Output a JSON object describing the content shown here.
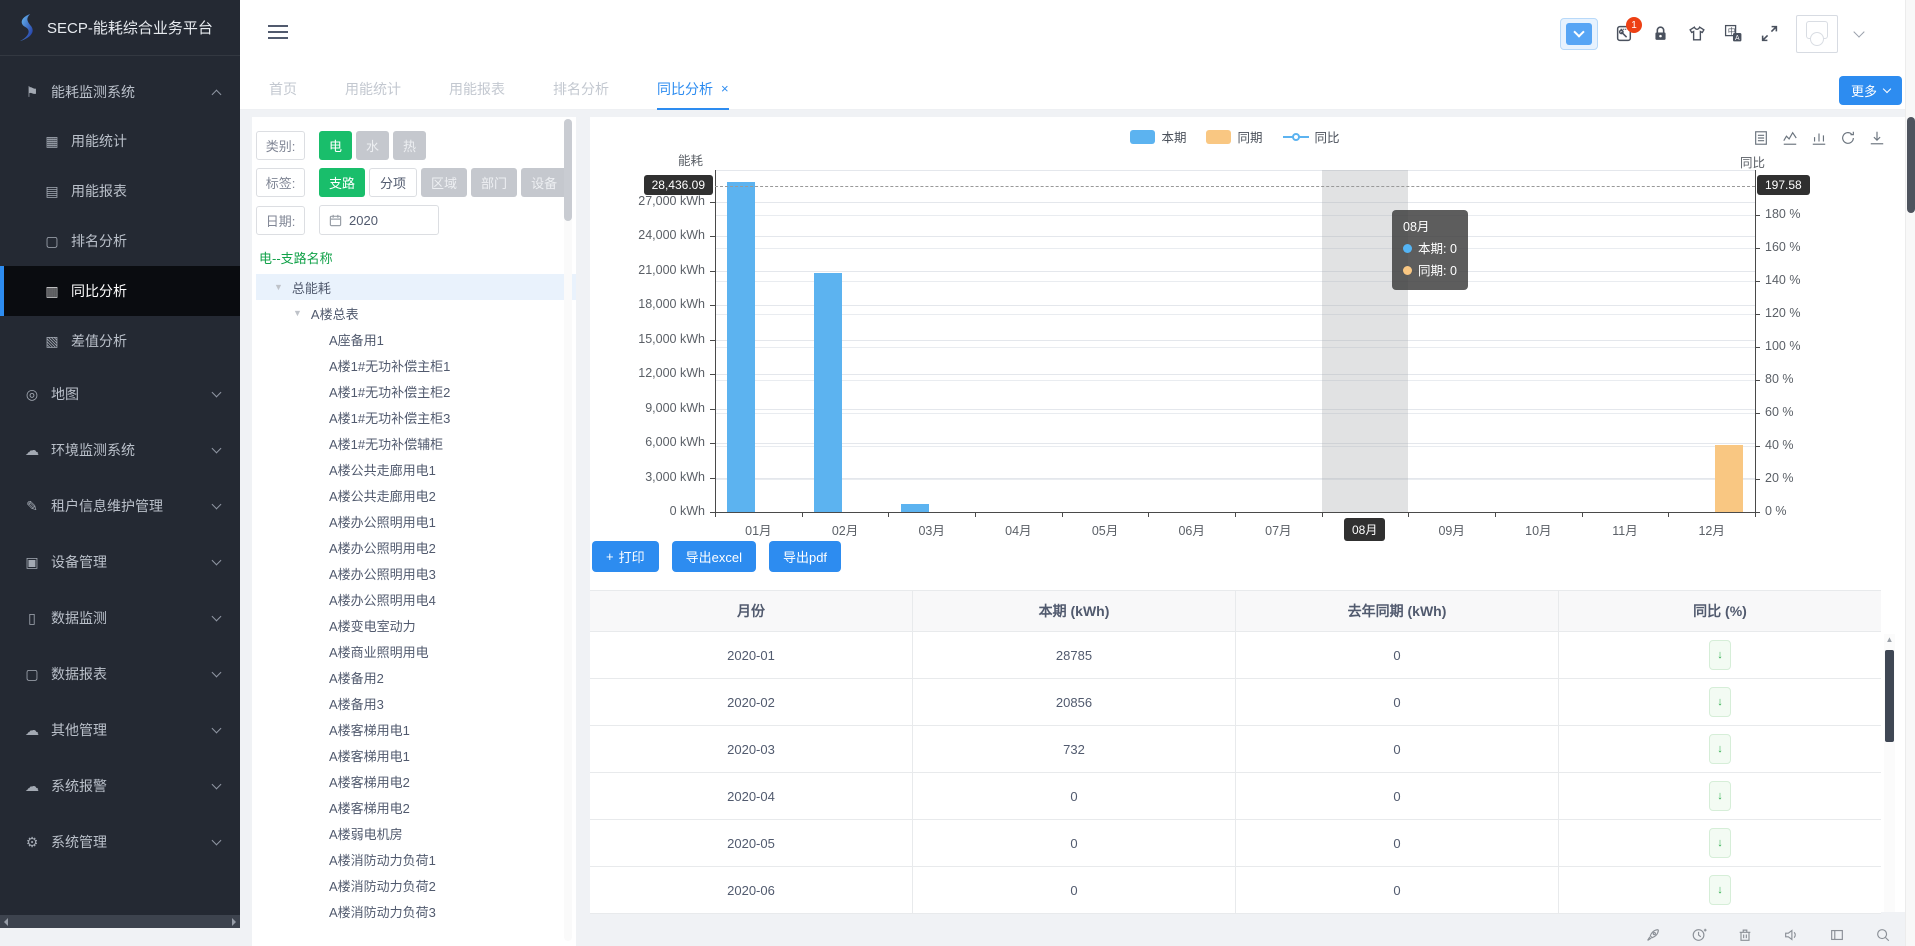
{
  "app": {
    "title": "SECP-能耗综合业务平台"
  },
  "colors": {
    "primary": "#2d8cf0",
    "green": "#19be6b",
    "bar_blue": "#5cb3f0",
    "bar_orange": "#f9c782",
    "badge_red": "#ed4014",
    "tree_title_green": "#13a24a"
  },
  "header": {
    "notification_badge": "1",
    "icons": [
      "message-dropdown",
      "repair-tools",
      "lock",
      "theme-shirt",
      "translate",
      "fullscreen",
      "avatar",
      "user-menu-chevron"
    ]
  },
  "tabs": {
    "items": [
      {
        "label": "首页"
      },
      {
        "label": "用能统计"
      },
      {
        "label": "用能报表"
      },
      {
        "label": "排名分析"
      },
      {
        "label": "同比分析",
        "active": true,
        "closable": true
      }
    ],
    "close_glyph": "×",
    "more_label": "更多"
  },
  "sidebar": {
    "items": [
      {
        "label": "能耗监测系统",
        "icon": "flag",
        "glyph": "⚑",
        "level": "section",
        "chevron": "up"
      },
      {
        "label": "用能统计",
        "icon": "stats-grid",
        "glyph": "▦",
        "level": "sub"
      },
      {
        "label": "用能报表",
        "icon": "report-book",
        "glyph": "▤",
        "level": "sub"
      },
      {
        "label": "排名分析",
        "icon": "ranking-screen",
        "glyph": "▢",
        "level": "sub"
      },
      {
        "label": "同比分析",
        "icon": "bar-analysis",
        "glyph": "▥",
        "level": "sub",
        "active": true
      },
      {
        "label": "差值分析",
        "icon": "diff-analysis",
        "glyph": "▧",
        "level": "sub"
      },
      {
        "label": "地图",
        "icon": "map-pin",
        "glyph": "◎",
        "level": "top",
        "chevron": "down"
      },
      {
        "label": "环境监测系统",
        "icon": "cloud",
        "glyph": "☁",
        "level": "top",
        "chevron": "down"
      },
      {
        "label": "租户信息维护管理",
        "icon": "edit-pen",
        "glyph": "✎",
        "level": "top",
        "chevron": "down"
      },
      {
        "label": "设备管理",
        "icon": "device",
        "glyph": "▣",
        "level": "top",
        "chevron": "down"
      },
      {
        "label": "数据监测",
        "icon": "doc-monitor",
        "glyph": "▯",
        "level": "top",
        "chevron": "down"
      },
      {
        "label": "数据报表",
        "icon": "doc-report",
        "glyph": "▢",
        "level": "top",
        "chevron": "down"
      },
      {
        "label": "其他管理",
        "icon": "cloud",
        "glyph": "☁",
        "level": "top",
        "chevron": "down"
      },
      {
        "label": "系统报警",
        "icon": "cloud-alarm",
        "glyph": "☁",
        "level": "top",
        "chevron": "down"
      },
      {
        "label": "系统管理",
        "icon": "gear",
        "glyph": "⚙",
        "level": "top",
        "chevron": "down"
      }
    ]
  },
  "filters": {
    "category_label": "类别:",
    "categories": [
      {
        "label": "电",
        "state": "on"
      },
      {
        "label": "水",
        "state": "off"
      },
      {
        "label": "热",
        "state": "off"
      }
    ],
    "tag_label": "标签:",
    "tags": [
      {
        "label": "支路",
        "state": "on"
      },
      {
        "label": "分项",
        "state": "plain"
      },
      {
        "label": "区域",
        "state": "off"
      },
      {
        "label": "部门",
        "state": "off"
      },
      {
        "label": "设备",
        "state": "off"
      }
    ],
    "date_label": "日期:",
    "date_value": "2020"
  },
  "tree": {
    "title": "电--支路名称",
    "root": "总能耗",
    "parent": "A楼总表",
    "caret_glyph": "▼",
    "children": [
      "A座备用1",
      "A楼1#无功补偿主柜1",
      "A楼1#无功补偿主柜2",
      "A楼1#无功补偿主柜3",
      "A楼1#无功补偿辅柜",
      "A楼公共走廊用电1",
      "A楼公共走廊用电2",
      "A楼办公照明用电1",
      "A楼办公照明用电2",
      "A楼办公照明用电3",
      "A楼办公照明用电4",
      "A楼变电室动力",
      "A楼商业照明用电",
      "A楼备用2",
      "A楼备用3",
      "A楼客梯用电1",
      "A楼客梯用电1",
      "A楼客梯用电2",
      "A楼客梯用电2",
      "A楼弱电机房",
      "A楼消防动力负荷1",
      "A楼消防动力负荷2",
      "A楼消防动力负荷3"
    ]
  },
  "chart": {
    "legend": [
      {
        "label": "本期",
        "type": "bar",
        "color": "#5cb3f0"
      },
      {
        "label": "同期",
        "type": "bar",
        "color": "#f9c782"
      },
      {
        "label": "同比",
        "type": "line",
        "color": "#5cb3f0"
      }
    ],
    "tools": [
      "data-view",
      "line-chart",
      "bar-chart",
      "refresh",
      "download"
    ]
  },
  "chart_data": {
    "type": "bar",
    "categories": [
      "01月",
      "02月",
      "03月",
      "04月",
      "05月",
      "06月",
      "07月",
      "08月",
      "09月",
      "10月",
      "11月",
      "12月"
    ],
    "series": [
      {
        "name": "本期",
        "type": "bar",
        "color": "#5cb3f0",
        "values": [
          28785,
          20856,
          732,
          0,
          0,
          0,
          0,
          0,
          0,
          0,
          0,
          0
        ]
      },
      {
        "name": "同期",
        "type": "bar",
        "color": "#f9c782",
        "values": [
          0,
          0,
          0,
          0,
          0,
          0,
          0,
          0,
          0,
          0,
          0,
          5835
        ]
      },
      {
        "name": "同比",
        "type": "line",
        "color": "#5cb3f0",
        "values": [
          null,
          null,
          null,
          null,
          null,
          null,
          null,
          null,
          null,
          null,
          null,
          null
        ]
      }
    ],
    "y_left": {
      "title": "能耗",
      "unit": "kWh",
      "min": 0,
      "tick_step": 3000,
      "tick_max": 27000
    },
    "y_right": {
      "title": "同比",
      "unit": "%",
      "min": 0,
      "tick_step": 20,
      "tick_max": 180
    },
    "pointer": {
      "month": "08月",
      "left_label": "28,436.09",
      "right_label": "197.58",
      "left_value": 28436.09
    },
    "tooltip": {
      "title": "08月",
      "items": [
        {
          "name": "本期",
          "value": "0",
          "color": "#54b5f5"
        },
        {
          "name": "同期",
          "value": "0",
          "color": "#f9c782"
        }
      ]
    },
    "highlight_index": 7,
    "grid": true,
    "legend_position": "top-center"
  },
  "actions": {
    "print_plus": "+",
    "print": "打印",
    "excel": "导出excel",
    "pdf": "导出pdf"
  },
  "table": {
    "headers": [
      "月份",
      "本期 (kWh)",
      "去年同期 (kWh)",
      "同比 (%)"
    ],
    "rows": [
      {
        "month": "2020-01",
        "current": "28785",
        "last_year": "0"
      },
      {
        "month": "2020-02",
        "current": "20856",
        "last_year": "0"
      },
      {
        "month": "2020-03",
        "current": "732",
        "last_year": "0"
      },
      {
        "month": "2020-04",
        "current": "0",
        "last_year": "0"
      },
      {
        "month": "2020-05",
        "current": "0",
        "last_year": "0"
      },
      {
        "month": "2020-06",
        "current": "0",
        "last_year": "0"
      }
    ],
    "trend_glyph": "↓"
  },
  "footer": {
    "icons": [
      "rocket",
      "timer",
      "trash",
      "speaker",
      "window",
      "search"
    ]
  }
}
